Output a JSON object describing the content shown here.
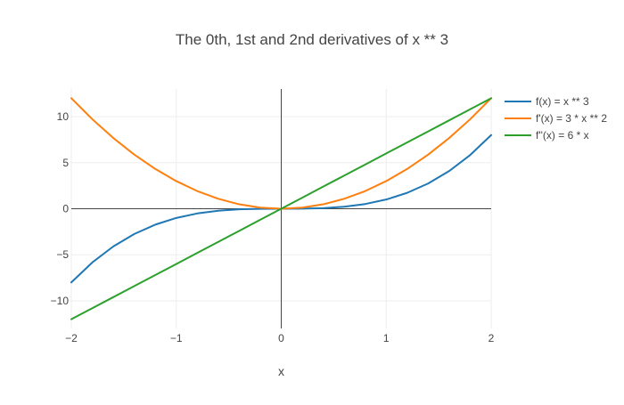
{
  "chart_data": {
    "type": "line",
    "title": "The 0th, 1st and 2nd derivatives of x ** 3",
    "xlabel": "x",
    "ylabel": "",
    "xlim": [
      -2,
      2
    ],
    "ylim": [
      -13,
      13
    ],
    "x_ticks": [
      -2,
      -1,
      0,
      1,
      2
    ],
    "x_tick_labels": [
      "−2",
      "−1",
      "0",
      "1",
      "2"
    ],
    "y_ticks": [
      -10,
      -5,
      0,
      5,
      10
    ],
    "y_tick_labels": [
      "−10",
      "−5",
      "0",
      "5",
      "10"
    ],
    "grid": true,
    "legend_position": "right",
    "x": [
      -2,
      -1.8,
      -1.6,
      -1.4,
      -1.2,
      -1,
      -0.8,
      -0.6,
      -0.4,
      -0.2,
      0,
      0.2,
      0.4,
      0.6,
      0.8,
      1,
      1.2,
      1.4,
      1.6,
      1.8,
      2
    ],
    "series": [
      {
        "name": "f(x) = x ** 3",
        "color": "#1f77b4",
        "values": [
          -8,
          -5.832,
          -4.096,
          -2.744,
          -1.728,
          -1,
          -0.512,
          -0.216,
          -0.064,
          -0.008,
          0,
          0.008,
          0.064,
          0.216,
          0.512,
          1,
          1.728,
          2.744,
          4.096,
          5.832,
          8
        ]
      },
      {
        "name": "f'(x) = 3 * x ** 2",
        "color": "#ff7f0e",
        "values": [
          12,
          9.72,
          7.68,
          5.88,
          4.32,
          3,
          1.92,
          1.08,
          0.48,
          0.12,
          0,
          0.12,
          0.48,
          1.08,
          1.92,
          3,
          4.32,
          5.88,
          7.68,
          9.72,
          12
        ]
      },
      {
        "name": "f''(x) = 6 * x",
        "color": "#2ca02c",
        "values": [
          -12,
          -10.8,
          -9.6,
          -8.4,
          -7.2,
          -6,
          -4.8,
          -3.6,
          -2.4,
          -1.2,
          0,
          1.2,
          2.4,
          3.6,
          4.8,
          6,
          7.2,
          8.4,
          9.6,
          10.8,
          12
        ]
      }
    ]
  }
}
